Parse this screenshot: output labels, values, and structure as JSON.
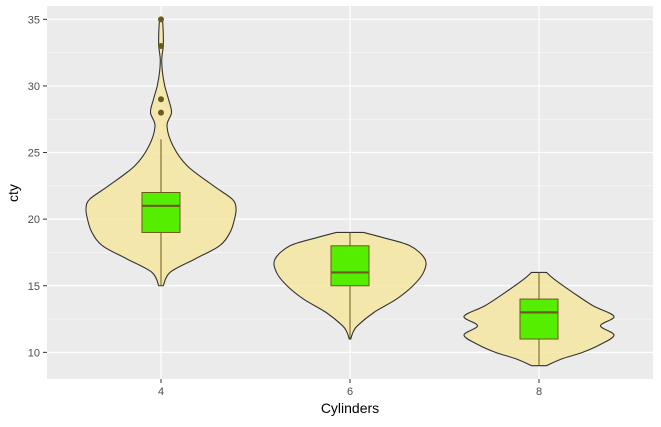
{
  "chart_data": {
    "type": "violin",
    "xlabel": "Cylinders",
    "ylabel": "cty",
    "ylim": [
      8,
      36
    ],
    "y_ticks": [
      10,
      15,
      20,
      25,
      30,
      35
    ],
    "categories": [
      "4",
      "6",
      "8"
    ],
    "grid": true,
    "legend": "none",
    "colors": {
      "panel_bg": "#ebebeb",
      "grid": "#ffffff",
      "violin_fill": "#f5e6a0",
      "violin_stroke": "#333333",
      "box_fill": "#55ee00",
      "box_stroke": "#6b5a1a",
      "outlier": "#6b5a1a"
    },
    "violins": [
      {
        "category": "4",
        "profile": [
          [
            15,
            0.03
          ],
          [
            16,
            0.12
          ],
          [
            17,
            0.45
          ],
          [
            18,
            0.78
          ],
          [
            19,
            0.92
          ],
          [
            20,
            0.98
          ],
          [
            20.8,
            1.0
          ],
          [
            21.5,
            0.95
          ],
          [
            22.5,
            0.7
          ],
          [
            24,
            0.35
          ],
          [
            25.5,
            0.16
          ],
          [
            27,
            0.08
          ],
          [
            28,
            0.14
          ],
          [
            29,
            0.1
          ],
          [
            30,
            0.05
          ],
          [
            31,
            0.02
          ],
          [
            32,
            0.01
          ],
          [
            33,
            0.03
          ],
          [
            34,
            0.03
          ],
          [
            35,
            0.02
          ]
        ],
        "box": {
          "q1": 19,
          "median": 21,
          "q3": 22,
          "whisker_low": 15,
          "whisker_high": 26
        },
        "outliers": [
          28,
          29,
          33,
          35
        ]
      },
      {
        "category": "6",
        "profile": [
          [
            11,
            0.01
          ],
          [
            11.5,
            0.04
          ],
          [
            12,
            0.1
          ],
          [
            13,
            0.32
          ],
          [
            14,
            0.62
          ],
          [
            15,
            0.84
          ],
          [
            16,
            0.98
          ],
          [
            17,
            1.0
          ],
          [
            18,
            0.8
          ],
          [
            18.6,
            0.45
          ],
          [
            19,
            0.18
          ]
        ],
        "box": {
          "q1": 15,
          "median": 16,
          "q3": 18,
          "whisker_low": 11,
          "whisker_high": 19
        },
        "outliers": []
      },
      {
        "category": "8",
        "profile": [
          [
            9,
            0.1
          ],
          [
            9.5,
            0.3
          ],
          [
            10,
            0.58
          ],
          [
            10.6,
            0.82
          ],
          [
            11.3,
            1.0
          ],
          [
            12,
            0.82
          ],
          [
            12.7,
            1.0
          ],
          [
            13.5,
            0.72
          ],
          [
            14.5,
            0.45
          ],
          [
            15.5,
            0.2
          ],
          [
            16,
            0.1
          ]
        ],
        "box": {
          "q1": 11,
          "median": 13,
          "q3": 14,
          "whisker_low": 9,
          "whisker_high": 16
        },
        "outliers": []
      }
    ]
  }
}
